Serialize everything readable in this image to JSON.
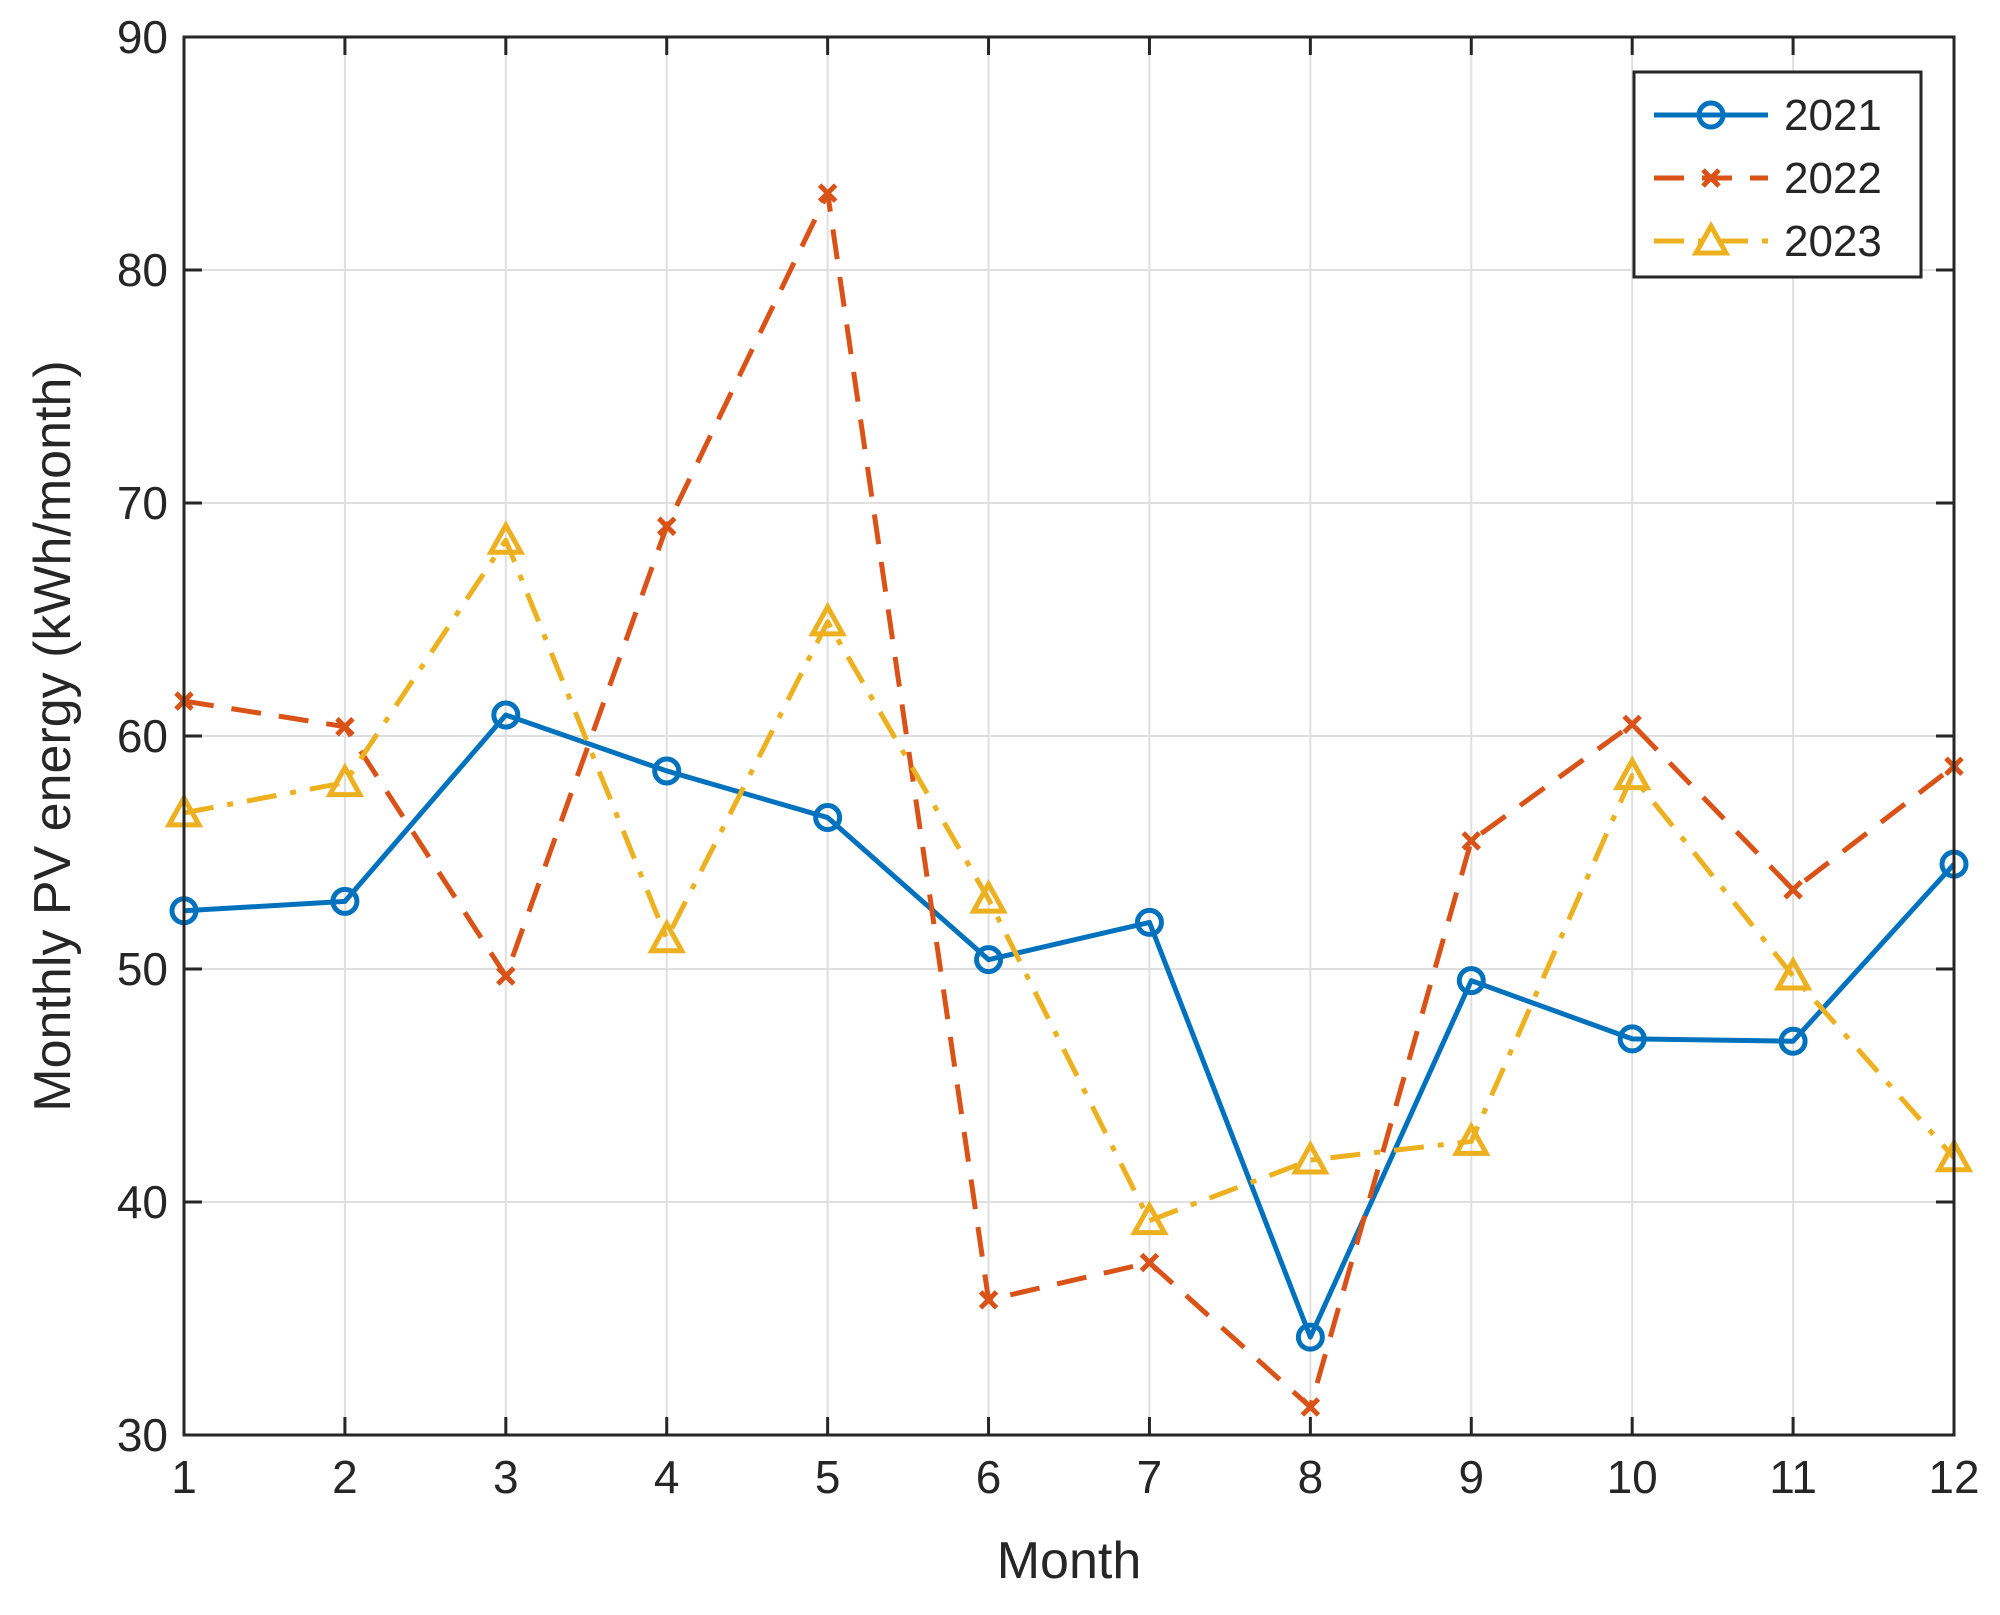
{
  "chart_data": {
    "type": "line",
    "title": "",
    "xlabel": "Month",
    "ylabel": "Monthly PV energy (kWh/month)",
    "xlim": [
      1,
      12
    ],
    "ylim": [
      30,
      90
    ],
    "x_ticks": [
      "1",
      "2",
      "3",
      "4",
      "5",
      "6",
      "7",
      "8",
      "9",
      "10",
      "11",
      "12"
    ],
    "y_ticks": [
      "30",
      "40",
      "50",
      "60",
      "70",
      "80",
      "90"
    ],
    "grid": true,
    "legend_position": "top-right",
    "x": [
      1,
      2,
      3,
      4,
      5,
      6,
      7,
      8,
      9,
      10,
      11,
      12
    ],
    "series": [
      {
        "name": "2021",
        "color": "#0072BD",
        "line_style": "solid",
        "marker": "circle",
        "values": [
          52.5,
          52.9,
          60.9,
          58.5,
          56.5,
          50.4,
          52.0,
          34.2,
          49.5,
          47.0,
          46.9,
          54.5
        ]
      },
      {
        "name": "2022",
        "color": "#D95319",
        "line_style": "dashed",
        "marker": "x",
        "values": [
          61.5,
          60.4,
          49.7,
          69.0,
          83.3,
          35.8,
          37.4,
          31.2,
          55.5,
          60.5,
          53.4,
          58.7
        ]
      },
      {
        "name": "2023",
        "color": "#EDB120",
        "line_style": "dashdot",
        "marker": "triangle",
        "values": [
          56.7,
          58.0,
          68.4,
          51.3,
          64.9,
          53.0,
          39.2,
          41.8,
          42.6,
          58.3,
          49.7,
          41.9
        ]
      }
    ]
  }
}
